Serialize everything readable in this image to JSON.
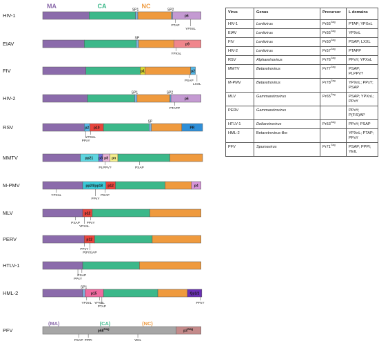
{
  "colors": {
    "MA": "#8b6bab",
    "CA": "#3cb88a",
    "NC": "#ef9a3e",
    "SP": "#7fb2e0",
    "p6": "#c49ad2",
    "p9": "#f0868c",
    "p1": "#d9d92e",
    "p2": "#55b8e8",
    "p10": "#e8443c",
    "PR": "#2e8fd8",
    "pp21": "#5ed6e0",
    "p3": "#6f6fdc",
    "p8": "#e8b2d6",
    "pn": "#f4ee8c",
    "pp24": "#39c9d8",
    "p12": "#e8443c",
    "p4": "#d695d8",
    "p12y": "#e8e23a",
    "p12b": "#55b8e8",
    "p15": "#f06aa0",
    "qp": "#6a2fb5",
    "gray": "#a6a6a6",
    "p3gag": "#c48a8a"
  },
  "headers": {
    "ma": "MA",
    "ca": "CA",
    "nc": "NC",
    "pfv_ma": "(MA)",
    "pfv_ca": "(CA)",
    "pfv_nc": "(NC)"
  },
  "rows": [
    {
      "name": "HIV-1",
      "segments": [
        [
          "MA",
          0,
          0.29
        ],
        [
          "CA",
          0.29,
          0.58
        ],
        [
          "SP",
          0.58,
          0.595
        ],
        [
          "NC",
          0.595,
          0.805
        ],
        [
          "p2",
          0.805,
          0.812
        ],
        [
          "p6",
          0.812,
          0.99
        ]
      ],
      "labels": [
        {
          "text": "SP1",
          "at": 0.58,
          "pos": "top"
        },
        {
          "text": "SP2",
          "at": 0.8,
          "pos": "top"
        },
        {
          "text": "p6",
          "at": 0.9,
          "pos": "in",
          "bold": true
        }
      ],
      "annotations": [
        {
          "text": "PTAP",
          "at": 0.83,
          "level": 1
        },
        {
          "text": "YPXnL",
          "at": 0.925,
          "level": 2
        }
      ]
    },
    {
      "name": "EIAV",
      "segments": [
        [
          "MA",
          0,
          0.26
        ],
        [
          "CA",
          0.26,
          0.585
        ],
        [
          "SP",
          0.585,
          0.6
        ],
        [
          "NC",
          0.6,
          0.82
        ],
        [
          "p9",
          0.82,
          0.99
        ]
      ],
      "labels": [
        {
          "text": "SP",
          "at": 0.59,
          "pos": "top"
        },
        {
          "text": "p9",
          "at": 0.905,
          "pos": "in",
          "bold": true
        }
      ],
      "annotations": [
        {
          "text": "YPXnL",
          "at": 0.835,
          "level": 1
        }
      ]
    },
    {
      "name": "FIV",
      "segments": [
        [
          "MA",
          0,
          0.27
        ],
        [
          "CA",
          0.27,
          0.61
        ],
        [
          "p1",
          0.61,
          0.64
        ],
        [
          "NC",
          0.64,
          0.925
        ],
        [
          "p2",
          0.925,
          0.955
        ]
      ],
      "labels": [
        {
          "text": "p1",
          "at": 0.625,
          "pos": "in",
          "bold": true
        },
        {
          "text": "p2",
          "at": 0.94,
          "pos": "in",
          "bold": true
        }
      ],
      "annotations": [
        {
          "text": "PSAP",
          "at": 0.915,
          "level": 1
        },
        {
          "text": "LXXL",
          "at": 0.965,
          "level": 2
        }
      ]
    },
    {
      "name": "HIV-2",
      "segments": [
        [
          "MA",
          0,
          0.28
        ],
        [
          "CA",
          0.28,
          0.575
        ],
        [
          "SP",
          0.575,
          0.59
        ],
        [
          "NC",
          0.59,
          0.795
        ],
        [
          "p2",
          0.795,
          0.802
        ],
        [
          "p6",
          0.802,
          0.99
        ]
      ],
      "labels": [
        {
          "text": "SP1",
          "at": 0.575,
          "pos": "top"
        },
        {
          "text": "SP2",
          "at": 0.795,
          "pos": "top"
        },
        {
          "text": "p6",
          "at": 0.9,
          "pos": "in",
          "bold": true
        }
      ],
      "annotations": [
        {
          "text": "PTAPP",
          "at": 0.825,
          "level": 1
        }
      ]
    },
    {
      "name": "RSV",
      "segments": [
        [
          "MA",
          0,
          0.26
        ],
        [
          "p2",
          0.26,
          0.295
        ],
        [
          "p10",
          0.295,
          0.38
        ],
        [
          "CA",
          0.38,
          0.665
        ],
        [
          "SP",
          0.665,
          0.68
        ],
        [
          "NC",
          0.68,
          0.87
        ],
        [
          "PR",
          0.87,
          1.0
        ]
      ],
      "labels": [
        {
          "text": "p2",
          "at": 0.277,
          "pos": "in",
          "bold": true
        },
        {
          "text": "p10",
          "at": 0.337,
          "pos": "in",
          "bold": true
        },
        {
          "text": "SP",
          "at": 0.672,
          "pos": "top"
        },
        {
          "text": "PR",
          "at": 0.935,
          "pos": "in",
          "bold": true
        }
      ],
      "annotations": [
        {
          "text": "PPxY",
          "at": 0.27,
          "level": 2
        },
        {
          "text": "YPXnL",
          "at": 0.3,
          "level": 1
        }
      ]
    },
    {
      "name": "MMTV",
      "segments": [
        [
          "MA",
          0,
          0.235
        ],
        [
          "pp21",
          0.235,
          0.35
        ],
        [
          "p3",
          0.35,
          0.375
        ],
        [
          "p8",
          0.375,
          0.42
        ],
        [
          "pn",
          0.42,
          0.47
        ],
        [
          "CA",
          0.47,
          0.795
        ],
        [
          "NC",
          0.795,
          1.0
        ]
      ],
      "labels": [
        {
          "text": "pp21",
          "at": 0.29,
          "pos": "in",
          "bold": true
        },
        {
          "text": "p3",
          "at": 0.362,
          "pos": "in",
          "bold": true
        },
        {
          "text": "p8",
          "at": 0.397,
          "pos": "in",
          "bold": true
        },
        {
          "text": "pn",
          "at": 0.445,
          "pos": "in",
          "bold": true
        }
      ],
      "annotations": [
        {
          "text": "PLPPV?",
          "at": 0.39,
          "level": 1
        },
        {
          "text": "PSAP",
          "at": 0.605,
          "level": 1
        }
      ]
    },
    {
      "name": "M-PMV",
      "segments": [
        [
          "MA",
          0,
          0.25
        ],
        [
          "pp24",
          0.25,
          0.395
        ],
        [
          "p12",
          0.395,
          0.455
        ],
        [
          "CA",
          0.455,
          0.765
        ],
        [
          "NC",
          0.765,
          0.93
        ],
        [
          "p4",
          0.93,
          0.99
        ]
      ],
      "labels": [
        {
          "text": "pp24/pp18",
          "at": 0.322,
          "pos": "in",
          "bold": true
        },
        {
          "text": "p12",
          "at": 0.425,
          "pos": "in",
          "bold": true
        },
        {
          "text": "p4",
          "at": 0.96,
          "pos": "in",
          "bold": true
        }
      ],
      "annotations": [
        {
          "text": "YPXnL",
          "at": 0.085,
          "level": 1
        },
        {
          "text": "PPxY",
          "at": 0.33,
          "level": 2
        },
        {
          "text": "PSAP",
          "at": 0.39,
          "level": 1
        }
      ]
    },
    {
      "name": "MLV",
      "segments": [
        [
          "MA",
          0,
          0.25
        ],
        [
          "p12",
          0.25,
          0.31
        ],
        [
          "CA",
          0.31,
          0.67
        ],
        [
          "NC",
          0.67,
          0.99
        ]
      ],
      "labels": [
        {
          "text": "p12",
          "at": 0.28,
          "pos": "in",
          "bold": true,
          "color": "p12y"
        }
      ],
      "annotations": [
        {
          "text": "PSAP",
          "at": 0.205,
          "level": 1
        },
        {
          "text": "YPXnL",
          "at": 0.26,
          "level": 2
        },
        {
          "text": "PPxY",
          "at": 0.3,
          "level": 1
        }
      ]
    },
    {
      "name": "PERV",
      "segments": [
        [
          "MA",
          0,
          0.26
        ],
        [
          "p12",
          0.26,
          0.325
        ],
        [
          "CA",
          0.325,
          0.685
        ],
        [
          "NC",
          0.685,
          0.99
        ]
      ],
      "labels": [
        {
          "text": "p12",
          "at": 0.292,
          "pos": "in",
          "bold": true,
          "color": "p12b"
        }
      ],
      "annotations": [
        {
          "text": "PPxY",
          "at": 0.26,
          "level": 1
        },
        {
          "text": "P(F/S)AP",
          "at": 0.295,
          "level": 2
        }
      ]
    },
    {
      "name": "HTLV-1",
      "segments": [
        [
          "MA",
          0,
          0.25
        ],
        [
          "CA",
          0.25,
          0.605
        ],
        [
          "NC",
          0.605,
          0.99
        ]
      ],
      "labels": [],
      "annotations": [
        {
          "text": "PPxY",
          "at": 0.22,
          "level": 2
        },
        {
          "text": "PSAP",
          "at": 0.245,
          "level": 1
        }
      ]
    },
    {
      "name": "HML-2",
      "segments": [
        [
          "MA",
          0,
          0.25
        ],
        [
          "SP",
          0.25,
          0.265
        ],
        [
          "p15",
          0.265,
          0.38
        ],
        [
          "CA",
          0.38,
          0.72
        ],
        [
          "NC",
          0.72,
          0.905
        ],
        [
          "qp",
          0.905,
          0.995
        ]
      ],
      "labels": [
        {
          "text": "SP1",
          "at": 0.257,
          "pos": "top"
        },
        {
          "text": "p15",
          "at": 0.32,
          "pos": "in",
          "bold": true
        },
        {
          "text": "Qp1/2",
          "at": 0.95,
          "pos": "in",
          "bold": true,
          "white": true
        }
      ],
      "annotations": [
        {
          "text": "YPXnL",
          "at": 0.275,
          "level": 1
        },
        {
          "text": "YPXnL",
          "at": 0.355,
          "level": 1
        },
        {
          "text": "PTAP",
          "at": 0.37,
          "level": 2
        },
        {
          "text": "PPxY",
          "at": 0.985,
          "level": 1
        }
      ]
    },
    {
      "name": "PFV",
      "pfv": true,
      "segments": [
        [
          "gray",
          0,
          0.835
        ],
        [
          "p3gag",
          0.835,
          0.99
        ]
      ],
      "labels": [
        {
          "text": "p68Gag",
          "at": 0.38,
          "pos": "in",
          "bold": true,
          "big": true
        },
        {
          "text": "p3Gag",
          "at": 0.91,
          "pos": "in",
          "bold": true,
          "big": true
        }
      ],
      "annotations": [
        {
          "text": "PSAP",
          "at": 0.225,
          "level": 1
        },
        {
          "text": "PPPI",
          "at": 0.285,
          "level": 1
        },
        {
          "text": "YEIL",
          "at": 0.595,
          "level": 1
        }
      ]
    }
  ],
  "table": {
    "headers": [
      "Virus",
      "Genus",
      "Precursor",
      "L domains"
    ],
    "rows": [
      [
        "HIV-1",
        "Lentivirus",
        "Pr55",
        "Gag",
        "PTAP; YPXnL"
      ],
      [
        "EIAV",
        "Lentivirus",
        "Pr55",
        "Gag",
        "YPXnL"
      ],
      [
        "FIV",
        "Lentivirus",
        "Pr50",
        "Gag",
        "PSAP; LXXL"
      ],
      [
        "HIV-2",
        "Lentivirus",
        "Pr57",
        "Gag",
        "PTAPP"
      ],
      [
        "RSV",
        "Alpharetrovirus",
        "Pr76",
        "Gag",
        "PPxY; YPXnL"
      ],
      [
        "MMTV",
        "Betaretrovirus",
        "Pr77",
        "Gag",
        "PSAP; PLPPV?"
      ],
      [
        "M-PMV",
        "Betaretrovirus",
        "Pr78",
        "Gag",
        "YPXnL; PPxY; PSAP"
      ],
      [
        "MLV",
        "Gammaretrovirus",
        "Pr65",
        "Gag",
        "PSAP; YPXnL; PPxY"
      ],
      [
        "PERV",
        "Gammaretrovirus",
        "",
        "",
        "PPxY; P(F/S)AP"
      ],
      [
        "HTLV-1",
        "Deltaretrovirus",
        "Pr53",
        "Gag",
        "PPxY; PSAP"
      ],
      [
        "HML-2",
        "Betaretrovirus-like",
        "",
        "",
        "YPXnL; PTAP; PPxY"
      ],
      [
        "PFV",
        "Spumavirus",
        "Pr71",
        "Gag",
        "PSAP; PPPI; YEIL"
      ]
    ]
  }
}
